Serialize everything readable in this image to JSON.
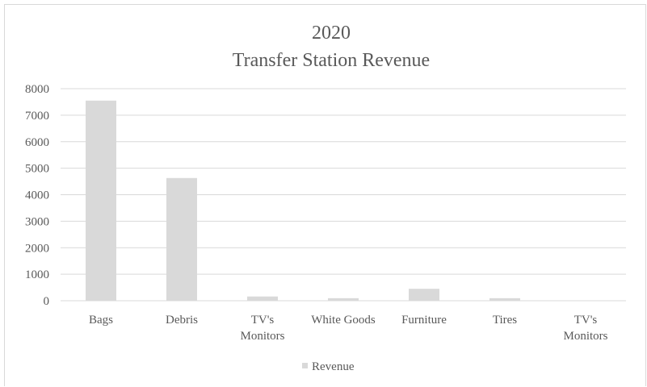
{
  "chart_data": {
    "type": "bar",
    "title_line1": "2020",
    "title_line2": "Transfer Station Revenue",
    "categories": [
      [
        "Bags"
      ],
      [
        "Debris"
      ],
      [
        "TV's",
        "Monitors"
      ],
      [
        "White Goods"
      ],
      [
        "Furniture"
      ],
      [
        "Tires"
      ],
      [
        "TV's",
        "Monitors"
      ]
    ],
    "series": [
      {
        "name": "Revenue",
        "values": [
          7550,
          4630,
          160,
          95,
          450,
          95,
          0
        ]
      }
    ],
    "ylim": [
      0,
      8000
    ],
    "yticks": [
      0,
      1000,
      2000,
      3000,
      4000,
      5000,
      6000,
      7000,
      8000
    ],
    "grid": true,
    "legend": "bottom",
    "colors": {
      "bar": "#d9d9d9",
      "grid": "#d9d9d9",
      "text": "#595959"
    }
  }
}
